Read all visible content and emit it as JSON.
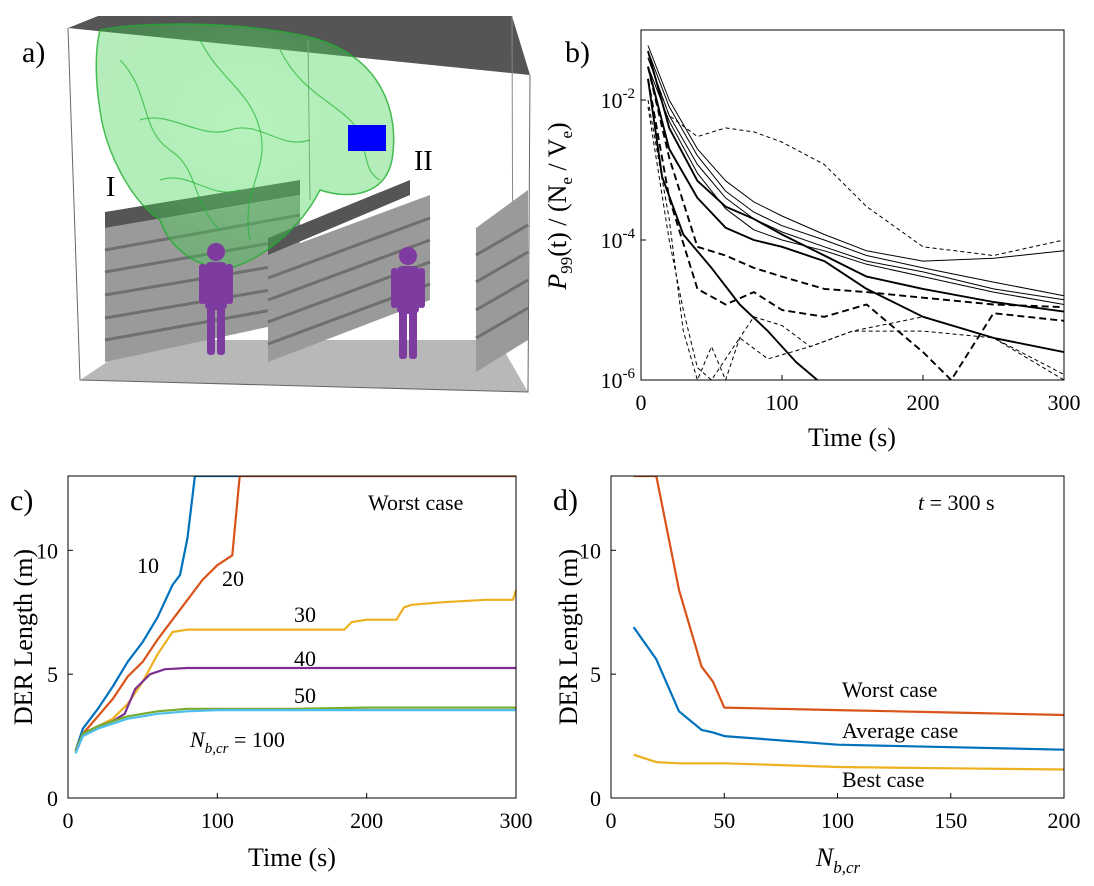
{
  "panels": {
    "a": {
      "letter": "a)",
      "region_I": "I",
      "region_II": "II"
    },
    "b": {
      "letter": "b)"
    },
    "c": {
      "letter": "c)"
    },
    "d": {
      "letter": "d)"
    }
  },
  "colors": {
    "c_10": "#0072BD",
    "c_20": "#D95319",
    "c_30": "#EDB120",
    "c_40": "#7E2F8E",
    "c_50": "#77AC30",
    "c_100": "#4DBEEE",
    "worst": "#D95319",
    "average": "#0072BD",
    "best": "#EDB120"
  },
  "chart_data": [
    {
      "panel": "b",
      "type": "line",
      "title": "",
      "xlabel": "Time (s)",
      "ylabel_parts": {
        "p": "P",
        "p_sub": "99",
        "mid": "(t) / (N",
        "ne_sub": "e",
        "slash": " / V",
        "ve_sub": "e",
        "end": ")"
      },
      "xlim": [
        0,
        300
      ],
      "ylim": [
        1e-06,
        0.1
      ],
      "yscale": "log",
      "xticks": [
        "0",
        "100",
        "200",
        "300"
      ],
      "yticks": [
        {
          "base": "10",
          "exp": "-6"
        },
        {
          "base": "10",
          "exp": "-4"
        },
        {
          "base": "10",
          "exp": "-2"
        }
      ],
      "series": [
        {
          "name": "s1",
          "style": "solid",
          "width": 1.0,
          "x": [
            5,
            20,
            40,
            60,
            80,
            100,
            130,
            160,
            200,
            250,
            300
          ],
          "y": [
            0.06,
            0.01,
            0.002,
            0.0007,
            0.00035,
            0.00022,
            0.00012,
            7e-05,
            5e-05,
            5.5e-05,
            7e-05
          ]
        },
        {
          "name": "s2",
          "style": "solid",
          "width": 1.0,
          "x": [
            5,
            20,
            40,
            60,
            80,
            100,
            130,
            160,
            200,
            250,
            300
          ],
          "y": [
            0.05,
            0.008,
            0.0016,
            0.0005,
            0.00025,
            0.00016,
            0.0001,
            6e-05,
            4e-05,
            2.5e-05,
            1.6e-05
          ]
        },
        {
          "name": "s3",
          "style": "solid",
          "width": 1.0,
          "x": [
            5,
            20,
            40,
            60,
            80,
            100,
            130,
            160,
            200,
            250,
            300
          ],
          "y": [
            0.04,
            0.006,
            0.0012,
            0.0004,
            0.0002,
            0.00013,
            8e-05,
            5e-05,
            3.5e-05,
            2e-05,
            1.4e-05
          ]
        },
        {
          "name": "s4",
          "style": "solid",
          "width": 1.0,
          "x": [
            5,
            20,
            40,
            60,
            80,
            100,
            130,
            160,
            200,
            250,
            300
          ],
          "y": [
            0.03,
            0.005,
            0.0009,
            0.00028,
            0.00014,
            0.0001,
            7e-05,
            4.5e-05,
            3e-05,
            1.8e-05,
            1.2e-05
          ]
        },
        {
          "name": "s5",
          "style": "solid",
          "width": 1.9,
          "x": [
            5,
            20,
            40,
            60,
            80,
            100,
            130,
            160,
            200,
            250,
            300
          ],
          "y": [
            0.05,
            0.004,
            0.0007,
            0.0003,
            0.0002,
            0.00012,
            6e-05,
            3e-05,
            2e-05,
            1.3e-05,
            9.5e-06
          ]
        },
        {
          "name": "s6",
          "style": "solid",
          "width": 1.9,
          "x": [
            5,
            20,
            40,
            60,
            80,
            100,
            130,
            160,
            200,
            250,
            300
          ],
          "y": [
            0.03,
            0.002,
            0.0004,
            0.00015,
            0.0001,
            8e-05,
            5e-05,
            2e-05,
            8e-06,
            4e-06,
            2.5e-06
          ]
        },
        {
          "name": "s7",
          "style": "solid",
          "width": 1.9,
          "x": [
            5,
            15,
            30,
            50,
            70,
            90,
            110,
            125
          ],
          "y": [
            0.02,
            0.0008,
            0.00012,
            4e-05,
            1.2e-05,
            5e-06,
            1.8e-06,
            1e-06
          ]
        },
        {
          "name": "s8",
          "style": "dashed",
          "width": 1.0,
          "x": [
            5,
            20,
            40,
            60,
            80,
            100,
            130,
            160,
            200,
            250,
            300
          ],
          "y": [
            0.04,
            0.006,
            0.003,
            0.004,
            0.0035,
            0.0025,
            0.0012,
            0.0003,
            8e-05,
            6e-05,
            0.0001
          ]
        },
        {
          "name": "s9",
          "style": "dashed",
          "width": 1.9,
          "x": [
            5,
            20,
            40,
            60,
            80,
            100,
            130,
            160,
            200,
            250,
            300
          ],
          "y": [
            0.03,
            0.0015,
            8e-05,
            6e-05,
            4e-05,
            3e-05,
            2e-05,
            1.8e-05,
            1.5e-05,
            1.2e-05,
            1.1e-05
          ]
        },
        {
          "name": "s10",
          "style": "dashed",
          "width": 1.9,
          "x": [
            5,
            20,
            40,
            60,
            80,
            100,
            130,
            160,
            200,
            220,
            250,
            300
          ],
          "y": [
            0.02,
            0.0004,
            2e-05,
            1.2e-05,
            1.8e-05,
            1e-05,
            8e-06,
            1.2e-05,
            2.5e-06,
            1e-06,
            9e-06,
            7e-06
          ]
        },
        {
          "name": "s11",
          "style": "dashed",
          "width": 1.0,
          "x": [
            5,
            20,
            30,
            40,
            50,
            60,
            70,
            80,
            100,
            120,
            150,
            200,
            250,
            300
          ],
          "y": [
            0.01,
            0.0002,
            5e-06,
            1e-06,
            3e-06,
            1e-06,
            4e-06,
            8e-06,
            6e-06,
            3e-06,
            5e-06,
            5e-06,
            4e-06,
            1e-06
          ]
        },
        {
          "name": "s12",
          "style": "dashed",
          "width": 1.0,
          "x": [
            5,
            20,
            30,
            40,
            50,
            70,
            90,
            120,
            150,
            200,
            250,
            300
          ],
          "y": [
            0.008,
            0.0001,
            1e-05,
            1.5e-06,
            1e-06,
            4e-06,
            2e-06,
            3e-06,
            5e-06,
            8e-06,
            4e-06,
            1.2e-06
          ]
        }
      ]
    },
    {
      "panel": "c",
      "type": "line",
      "title": "",
      "xlabel": "Time (s)",
      "ylabel": "DER Length (m)",
      "xlim": [
        0,
        300
      ],
      "ylim": [
        0,
        13
      ],
      "xticks": [
        "0",
        "100",
        "200",
        "300"
      ],
      "yticks": [
        "0",
        "5",
        "10"
      ],
      "annotation": "Worst case",
      "series_labels": [
        "10",
        "20",
        "30",
        "40",
        "50"
      ],
      "nbcr_label": {
        "n": "N",
        "sub": "b,cr",
        "eq": " = 100"
      },
      "series": [
        {
          "name": "10",
          "color_key": "c_10",
          "x": [
            5,
            10,
            20,
            30,
            40,
            50,
            60,
            70,
            75,
            80,
            85,
            300
          ],
          "y": [
            1.9,
            2.8,
            3.6,
            4.5,
            5.5,
            6.3,
            7.3,
            8.6,
            9.0,
            10.5,
            13,
            13
          ]
        },
        {
          "name": "20",
          "color_key": "c_20",
          "x": [
            5,
            10,
            20,
            30,
            40,
            50,
            60,
            70,
            80,
            90,
            100,
            110,
            115,
            300
          ],
          "y": [
            1.9,
            2.6,
            3.3,
            4.0,
            4.9,
            5.5,
            6.4,
            7.2,
            8.0,
            8.8,
            9.4,
            9.8,
            13,
            13
          ]
        },
        {
          "name": "30",
          "color_key": "c_30",
          "x": [
            5,
            10,
            20,
            30,
            40,
            50,
            60,
            70,
            80,
            100,
            150,
            185,
            190,
            200,
            220,
            225,
            230,
            250,
            280,
            298,
            300
          ],
          "y": [
            1.9,
            2.6,
            2.9,
            3.2,
            3.8,
            4.7,
            5.8,
            6.7,
            6.8,
            6.8,
            6.8,
            6.8,
            7.1,
            7.2,
            7.2,
            7.7,
            7.8,
            7.9,
            8.0,
            8.0,
            8.4
          ]
        },
        {
          "name": "40",
          "color_key": "c_40",
          "x": [
            5,
            10,
            20,
            30,
            38,
            45,
            55,
            65,
            80,
            100,
            200,
            300
          ],
          "y": [
            1.9,
            2.6,
            2.9,
            3.1,
            3.4,
            4.4,
            5.0,
            5.2,
            5.25,
            5.25,
            5.25,
            5.25
          ]
        },
        {
          "name": "50",
          "color_key": "c_50",
          "x": [
            5,
            10,
            20,
            30,
            40,
            50,
            60,
            80,
            100,
            150,
            200,
            300
          ],
          "y": [
            1.9,
            2.6,
            2.9,
            3.1,
            3.3,
            3.4,
            3.5,
            3.6,
            3.6,
            3.6,
            3.65,
            3.65
          ]
        },
        {
          "name": "100",
          "color_key": "c_100",
          "x": [
            5,
            10,
            20,
            30,
            40,
            50,
            60,
            80,
            100,
            150,
            200,
            300
          ],
          "y": [
            1.8,
            2.5,
            2.8,
            3.0,
            3.2,
            3.3,
            3.4,
            3.5,
            3.55,
            3.55,
            3.55,
            3.55
          ]
        }
      ]
    },
    {
      "panel": "d",
      "type": "line",
      "title": "",
      "xlabel_parts": {
        "n": "N",
        "sub": "b,cr"
      },
      "ylabel": "DER Length (m)",
      "xlim": [
        0,
        200
      ],
      "ylim": [
        0,
        13
      ],
      "xticks": [
        "0",
        "50",
        "100",
        "150",
        "200"
      ],
      "yticks": [
        "0",
        "5",
        "10"
      ],
      "annotation_parts": {
        "t": "t",
        "rest": " = 300 s"
      },
      "series": [
        {
          "name": "Worst case",
          "color_key": "worst",
          "x": [
            10,
            20,
            30,
            40,
            45,
            50,
            100,
            150,
            200
          ],
          "y": [
            13,
            13,
            8.4,
            5.3,
            4.7,
            3.65,
            3.55,
            3.45,
            3.35
          ]
        },
        {
          "name": "Average case",
          "color_key": "average",
          "x": [
            10,
            20,
            30,
            40,
            45,
            50,
            100,
            150,
            200
          ],
          "y": [
            6.9,
            5.6,
            3.5,
            2.75,
            2.65,
            2.5,
            2.15,
            2.05,
            1.95
          ]
        },
        {
          "name": "Best case",
          "color_key": "best",
          "x": [
            10,
            20,
            30,
            40,
            50,
            100,
            150,
            200
          ],
          "y": [
            1.75,
            1.45,
            1.4,
            1.4,
            1.4,
            1.25,
            1.2,
            1.15
          ]
        }
      ]
    }
  ]
}
